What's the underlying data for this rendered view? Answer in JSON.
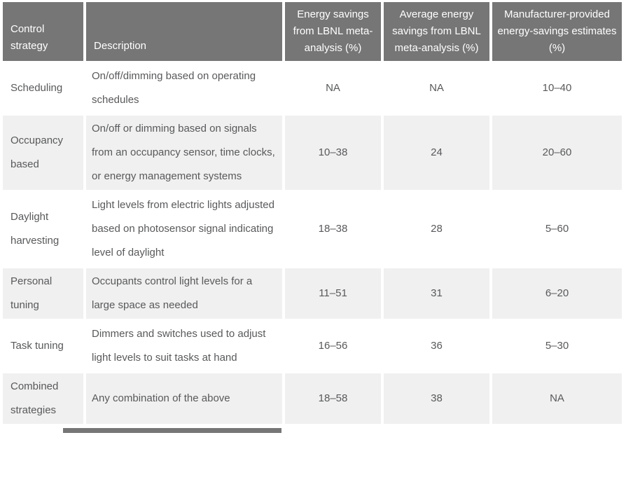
{
  "table": {
    "columns": [
      {
        "label": "Control strategy"
      },
      {
        "label": "Description"
      },
      {
        "label": "Energy savings from LBNL meta-analysis (%)"
      },
      {
        "label": "Average energy savings from LBNL meta-analysis (%)"
      },
      {
        "label": "Manufacturer-provided energy-savings estimates (%)"
      }
    ],
    "rows": [
      [
        "Scheduling",
        "On/off/dimming based on operating schedules",
        "NA",
        "NA",
        "10–40"
      ],
      [
        "Occupancy based",
        "On/off or dimming based on signals from an occupancy sensor, time clocks, or energy management systems",
        "10–38",
        "24",
        "20–60"
      ],
      [
        "Daylight harvesting",
        "Light levels from electric lights adjusted based on photosensor signal indicating level of daylight",
        "18–38",
        "28",
        "5–60"
      ],
      [
        "Personal tuning",
        "Occupants control light levels for a large space as needed",
        "11–51",
        "31",
        "6–20"
      ],
      [
        "Task tuning",
        "Dimmers and switches used to adjust light levels to suit tasks at hand",
        "16–56",
        "36",
        "5–30"
      ],
      [
        "Combined strategies",
        "Any combination of the above",
        "18–58",
        "38",
        "NA"
      ]
    ]
  },
  "colors": {
    "header_bg": "#767676",
    "header_text": "#ffffff",
    "row_alt_bg": "#f0f0f0",
    "body_text": "#58595b",
    "page_bg": "#ffffff"
  }
}
